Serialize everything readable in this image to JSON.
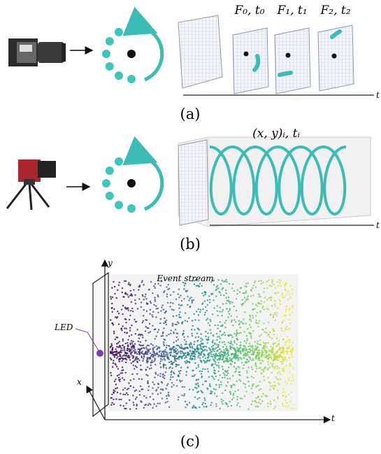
{
  "panel_a": {
    "frame_labels": [
      "F₀, t₀",
      "F₁, t₁",
      "F₂, t₂"
    ],
    "axis_label": "t",
    "caption": "(a)"
  },
  "panel_b": {
    "event_label": "(x, y)ᵢ, tᵢ",
    "axis_label": "t",
    "caption": "(b)"
  },
  "panel_c": {
    "y_label": "y",
    "title": "Event stream",
    "led_label": "LED",
    "x_label": "x",
    "t_label": "t",
    "caption": "(c)"
  }
}
